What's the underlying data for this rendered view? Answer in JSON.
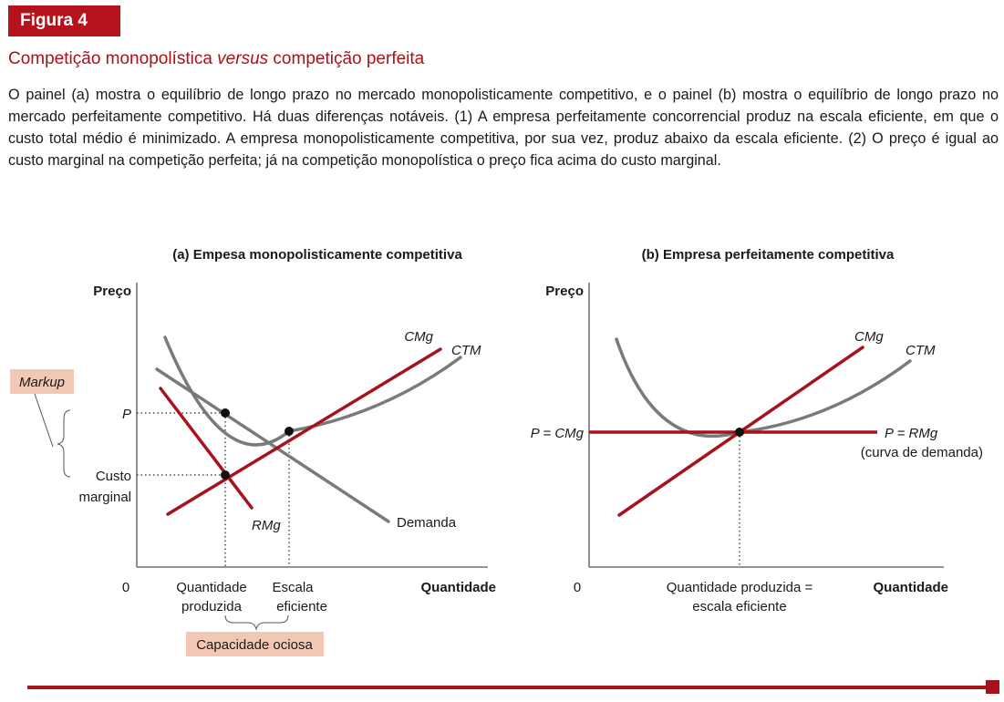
{
  "figure_label": "Figura 4",
  "title": {
    "prefix": "Competição monopolística ",
    "italic": "versus",
    "suffix": " competição perfeita"
  },
  "caption": "O painel (a) mostra o equilíbrio de longo prazo no mercado monopolisticamente competitivo, e o painel (b) mostra o equilíbrio de longo prazo no mercado perfeitamente competitivo. Há duas diferenças notáveis. (1) A empresa perfeitamente concorrencial produz na escala eficiente, em que o custo total médio é minimizado. A empresa monopolisticamente competitiva, por sua vez, produz abaixo da escala eficiente. (2) O preço é igual ao custo marginal na competição perfeita; já na competição monopolística o preço fica acima do custo marginal.",
  "colors": {
    "accent": "#a8121a",
    "curve_gray": "#7a7a7a",
    "highlight_box": "#f2c8b4"
  },
  "panel_a": {
    "title": "(a) Empesa monopolisticamente competitiva",
    "y_axis": "Preço",
    "x_axis": "Quantidade",
    "origin": "0",
    "markup": "Markup",
    "price": "P",
    "marginal_cost_line1": "Custo",
    "marginal_cost_line2": "marginal",
    "cmg": "CMg",
    "ctm": "CTM",
    "rmg": "RMg",
    "demand": "Demanda",
    "qty_line1": "Quantidade",
    "qty_line2": "produzida",
    "scale_line1": "Escala",
    "scale_line2": "eficiente",
    "idle_capacity": "Capacidade ociosa"
  },
  "panel_b": {
    "title": "(b) Empresa perfeitamente competitiva",
    "y_axis": "Preço",
    "x_axis": "Quantidade",
    "origin": "0",
    "cmg": "CMg",
    "ctm": "CTM",
    "price_eq": "P = CMg",
    "demand_eq": "P = RMg",
    "demand_note": "(curva de demanda)",
    "qty_line1": "Quantidade produzida =",
    "qty_line2": "escala eficiente"
  }
}
